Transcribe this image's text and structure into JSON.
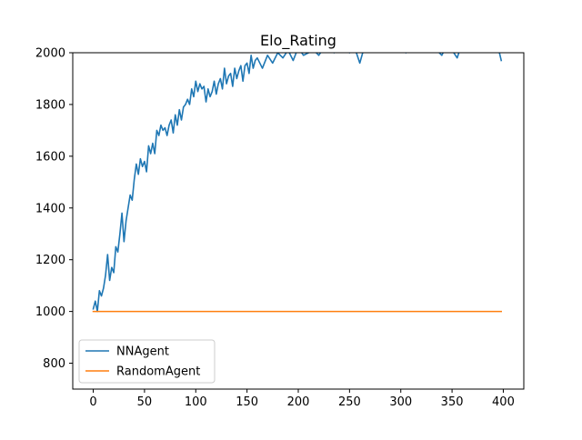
{
  "chart_data": {
    "type": "line",
    "title": "Elo_Rating",
    "xlabel": "",
    "ylabel": "",
    "xlim": [
      -20,
      420
    ],
    "ylim": [
      700,
      2000
    ],
    "xticks": [
      0,
      50,
      100,
      150,
      200,
      250,
      300,
      350,
      400
    ],
    "yticks": [
      800,
      1000,
      1200,
      1400,
      1600,
      1800,
      2000
    ],
    "grid": false,
    "legend_position": "lower-left",
    "series": [
      {
        "name": "NNAgent",
        "color": "#1f77b4",
        "x": [
          0,
          2,
          4,
          6,
          8,
          10,
          12,
          14,
          16,
          18,
          20,
          22,
          24,
          26,
          28,
          30,
          32,
          34,
          36,
          38,
          40,
          42,
          44,
          46,
          48,
          50,
          52,
          54,
          56,
          58,
          60,
          62,
          64,
          66,
          68,
          70,
          72,
          74,
          76,
          78,
          80,
          82,
          84,
          86,
          88,
          90,
          92,
          94,
          96,
          98,
          100,
          102,
          104,
          106,
          108,
          110,
          112,
          114,
          116,
          118,
          120,
          122,
          124,
          126,
          128,
          130,
          132,
          134,
          136,
          138,
          140,
          142,
          144,
          146,
          148,
          150,
          152,
          154,
          156,
          158,
          160,
          165,
          170,
          175,
          180,
          185,
          190,
          195,
          200,
          205,
          210,
          215,
          220,
          225,
          230,
          235,
          240,
          245,
          250,
          255,
          260,
          265,
          270,
          275,
          280,
          285,
          290,
          295,
          300,
          305,
          310,
          315,
          320,
          325,
          330,
          335,
          340,
          345,
          350,
          355,
          360,
          365,
          370,
          375,
          380,
          385,
          390,
          395,
          398
        ],
        "y": [
          1010,
          1040,
          1000,
          1080,
          1060,
          1090,
          1140,
          1220,
          1120,
          1170,
          1150,
          1250,
          1230,
          1300,
          1380,
          1270,
          1350,
          1400,
          1450,
          1430,
          1510,
          1570,
          1530,
          1590,
          1560,
          1580,
          1540,
          1640,
          1610,
          1650,
          1610,
          1700,
          1680,
          1720,
          1700,
          1710,
          1680,
          1720,
          1740,
          1690,
          1760,
          1720,
          1780,
          1740,
          1790,
          1800,
          1820,
          1800,
          1860,
          1830,
          1890,
          1850,
          1880,
          1860,
          1870,
          1810,
          1860,
          1830,
          1850,
          1890,
          1840,
          1880,
          1900,
          1860,
          1940,
          1880,
          1910,
          1920,
          1870,
          1940,
          1900,
          1930,
          1950,
          1890,
          1950,
          1960,
          1920,
          1990,
          1940,
          1970,
          1980,
          1940,
          1990,
          1960,
          2000,
          1980,
          2010,
          1970,
          2020,
          1990,
          2000,
          2010,
          1990,
          2020,
          2010,
          2000,
          2030,
          2010,
          2000,
          2020,
          1960,
          2030,
          2010,
          2040,
          2020,
          2030,
          2010,
          2040,
          2020,
          2000,
          2030,
          2010,
          2040,
          2020,
          2030,
          2010,
          1990,
          2030,
          2010,
          1980,
          2040,
          2010,
          2030,
          2020,
          2040,
          2010,
          2030,
          2020,
          1970
        ]
      },
      {
        "name": "RandomAgent",
        "color": "#ff7f0e",
        "x": [
          0,
          398
        ],
        "y": [
          1000,
          1000
        ]
      }
    ]
  }
}
